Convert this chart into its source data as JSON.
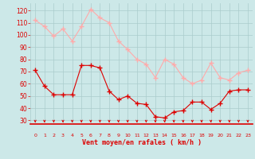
{
  "x": [
    0,
    1,
    2,
    3,
    4,
    5,
    6,
    7,
    8,
    9,
    10,
    11,
    12,
    13,
    14,
    15,
    16,
    17,
    18,
    19,
    20,
    21,
    22,
    23
  ],
  "wind_avg": [
    71,
    58,
    51,
    51,
    51,
    75,
    75,
    73,
    54,
    47,
    50,
    44,
    43,
    33,
    32,
    37,
    38,
    45,
    45,
    39,
    44,
    54,
    55,
    55
  ],
  "wind_gust": [
    112,
    107,
    99,
    105,
    95,
    107,
    121,
    114,
    110,
    95,
    88,
    80,
    76,
    65,
    80,
    76,
    65,
    60,
    63,
    77,
    65,
    63,
    69,
    71
  ],
  "bg_color": "#cce8e8",
  "grid_color": "#aacccc",
  "avg_color": "#dd0000",
  "gust_color": "#ffaaaa",
  "xlabel": "Vent moyen/en rafales ( km/h )",
  "xlabel_color": "#dd0000",
  "tick_color": "#dd0000",
  "arrow_color": "#dd0000",
  "yticks": [
    30,
    40,
    50,
    60,
    70,
    80,
    90,
    100,
    110,
    120
  ],
  "ylim": [
    27,
    126
  ],
  "xlim": [
    -0.5,
    23.5
  ]
}
